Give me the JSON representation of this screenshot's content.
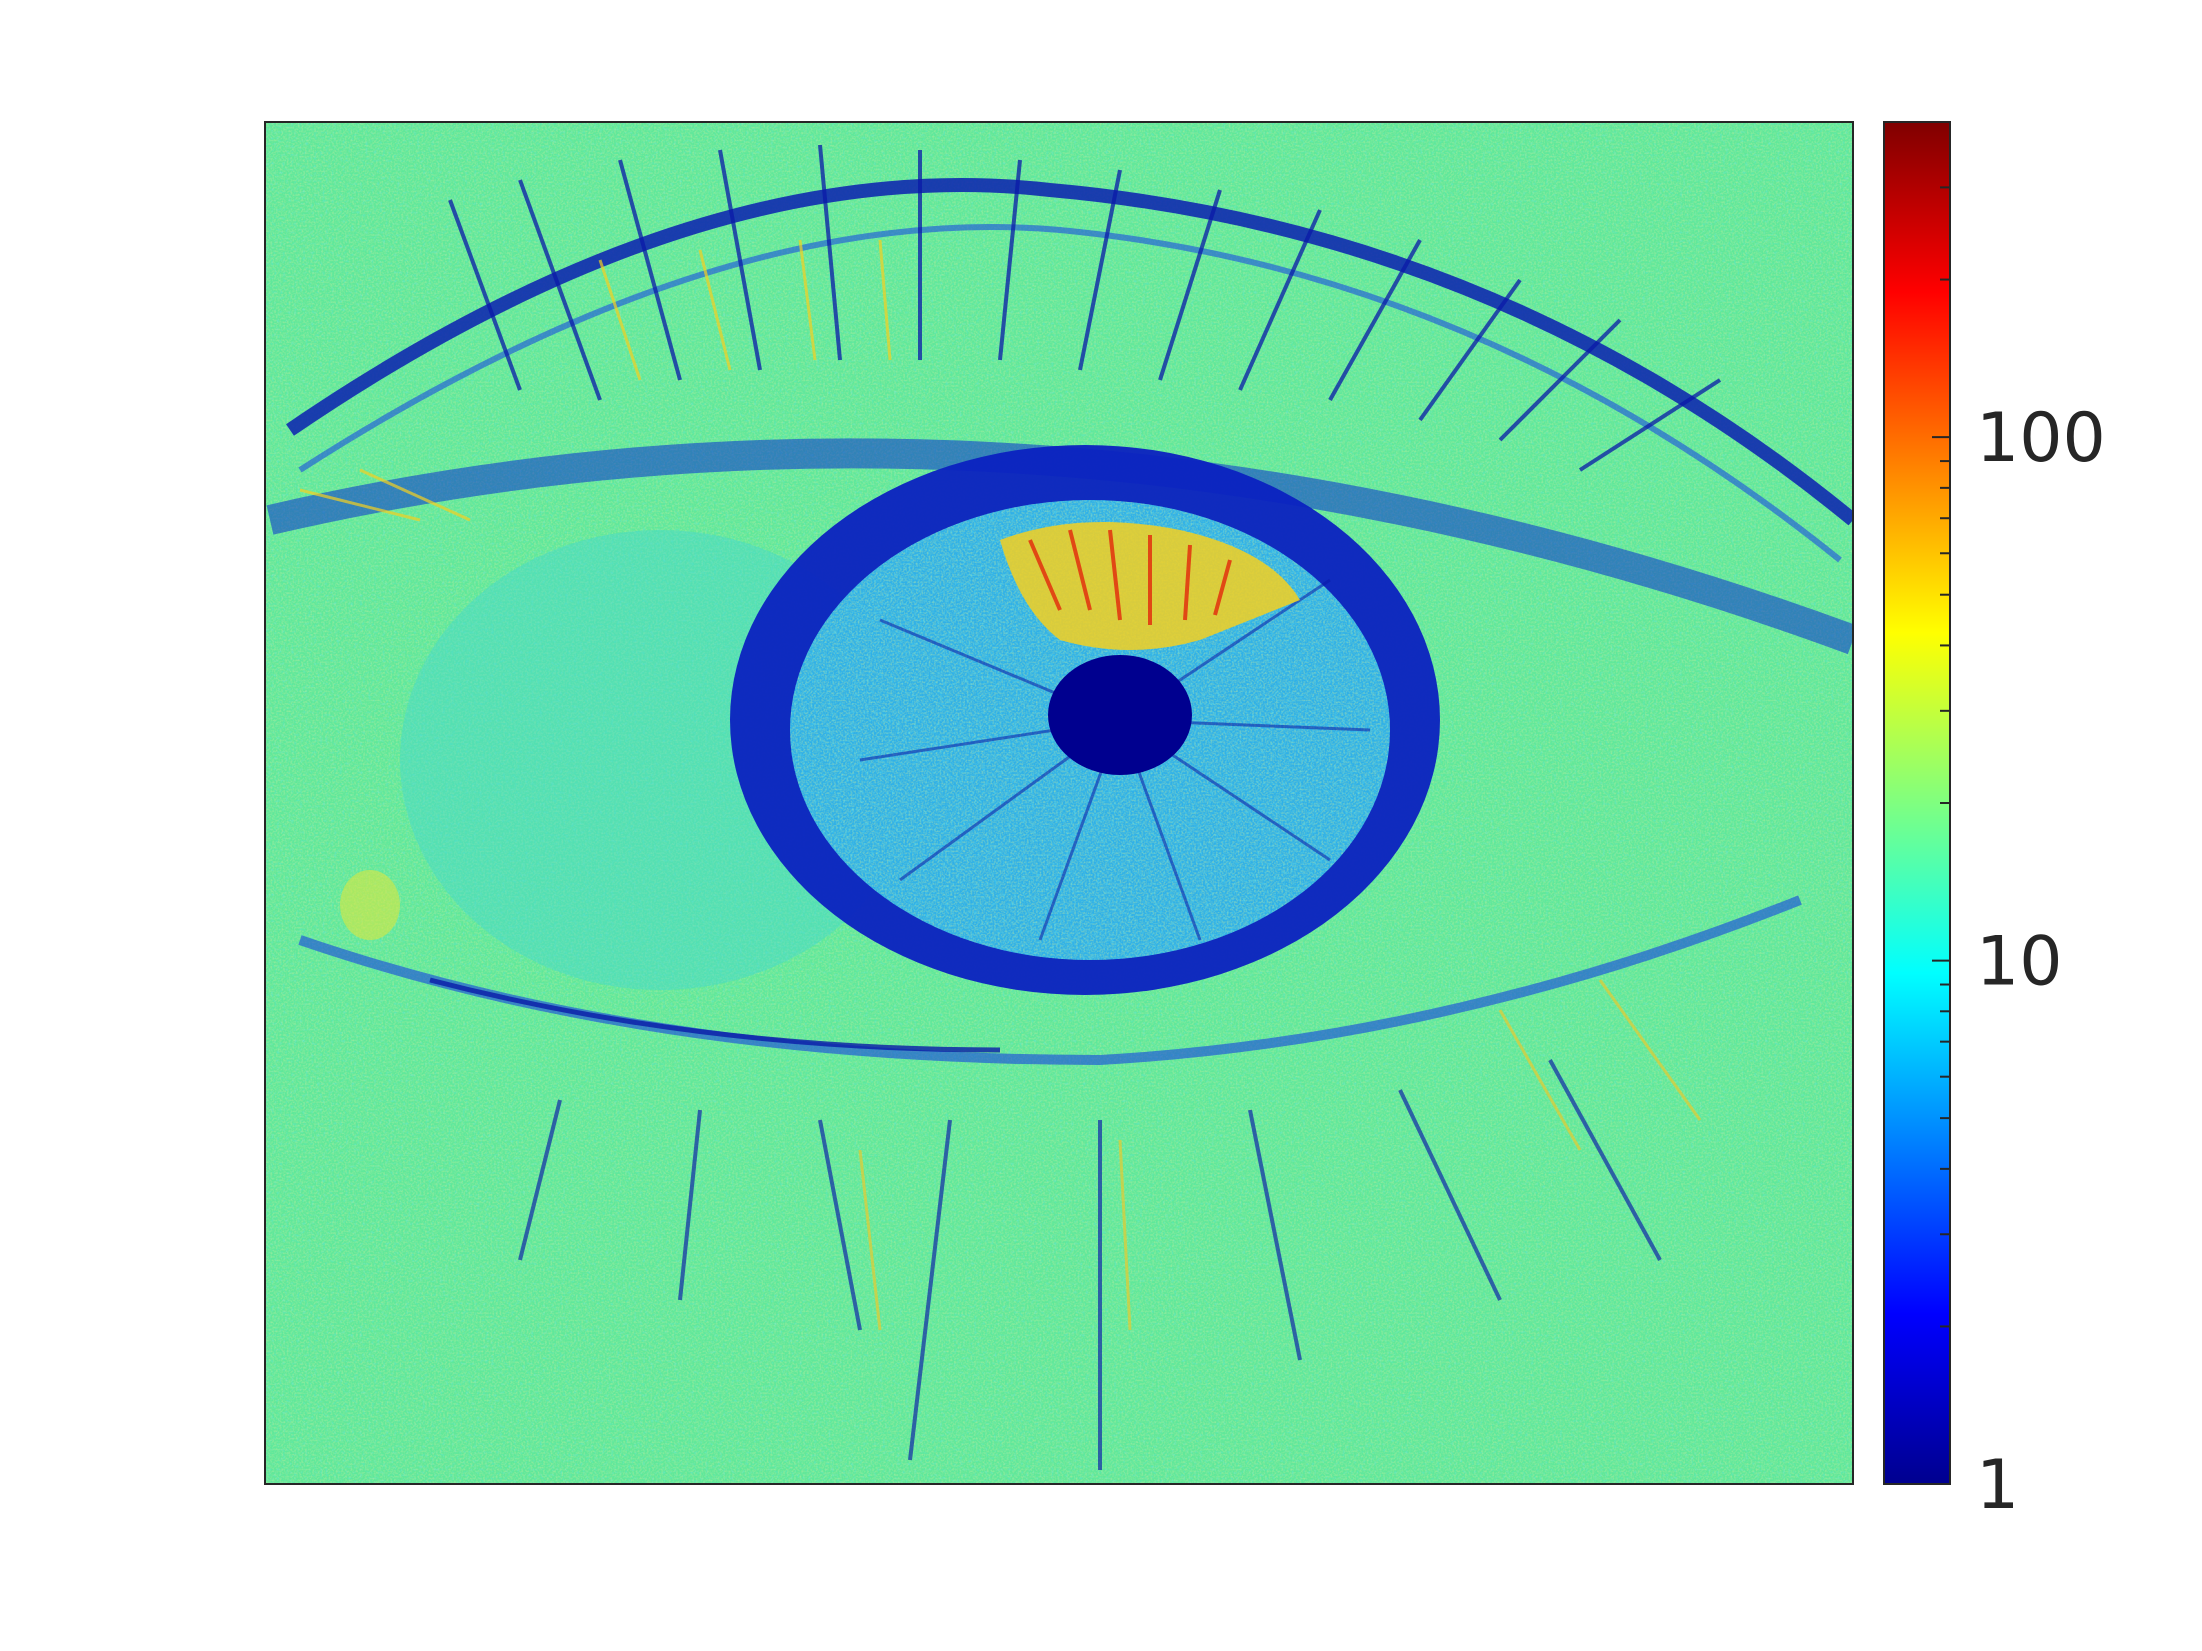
{
  "chart_data": {
    "type": "heatmap",
    "title": "",
    "xlabel": "",
    "ylabel": "",
    "colormap": "jet",
    "color_scale": "log",
    "color_range": [
      1,
      400
    ],
    "colorbar": {
      "position": "right",
      "ticks": [
        {
          "value": 1,
          "label": "1"
        },
        {
          "value": 10,
          "label": "10"
        },
        {
          "value": 100,
          "label": "100"
        }
      ]
    },
    "image_description_values": {
      "background_level": 20,
      "dark_structure_level": 2,
      "bright_highlight_level": 80,
      "pupil_level": 1
    },
    "axes": {
      "x_ticks_visible": false,
      "y_ticks_visible": false
    }
  }
}
